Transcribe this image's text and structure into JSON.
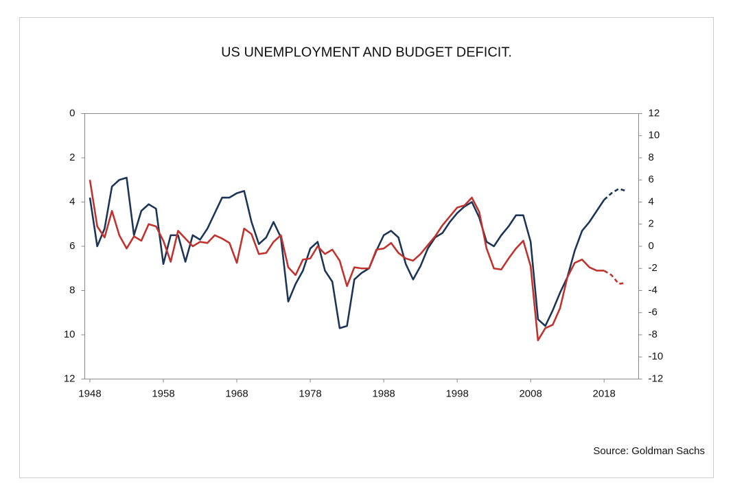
{
  "chart_data": {
    "type": "line",
    "title": "US UNEMPLOYMENT AND BUDGET DEFICIT.",
    "annotation": "Source:  Goldman Sachs",
    "x": [
      1948,
      1949,
      1950,
      1951,
      1952,
      1953,
      1954,
      1955,
      1956,
      1957,
      1958,
      1959,
      1960,
      1961,
      1962,
      1963,
      1964,
      1965,
      1966,
      1967,
      1968,
      1969,
      1970,
      1971,
      1972,
      1973,
      1974,
      1975,
      1976,
      1977,
      1978,
      1979,
      1980,
      1981,
      1982,
      1983,
      1984,
      1985,
      1986,
      1987,
      1988,
      1989,
      1990,
      1991,
      1992,
      1993,
      1994,
      1995,
      1996,
      1997,
      1998,
      1999,
      2000,
      2001,
      2002,
      2003,
      2004,
      2005,
      2006,
      2007,
      2008,
      2009,
      2010,
      2011,
      2012,
      2013,
      2014,
      2015,
      2016,
      2017,
      2018,
      2019,
      2020,
      2021
    ],
    "series": [
      {
        "color": "#1c3557",
        "values": [
          3.8,
          6.0,
          5.2,
          3.3,
          3.0,
          2.9,
          5.5,
          4.4,
          4.1,
          4.3,
          6.8,
          5.5,
          5.5,
          6.7,
          5.5,
          5.7,
          5.2,
          4.5,
          3.8,
          3.8,
          3.6,
          3.5,
          4.9,
          5.9,
          5.6,
          4.9,
          5.6,
          8.5,
          7.7,
          7.1,
          6.1,
          5.8,
          7.1,
          7.6,
          9.7,
          9.6,
          7.5,
          7.2,
          7.0,
          6.2,
          5.5,
          5.3,
          5.6,
          6.8,
          7.5,
          6.9,
          6.1,
          5.6,
          5.4,
          4.9,
          4.5,
          4.2,
          4.0,
          4.7,
          5.8,
          6.0,
          5.5,
          5.1,
          4.6,
          4.6,
          5.8,
          9.3,
          9.6,
          8.9,
          8.1,
          7.4,
          6.2,
          5.3,
          4.9,
          4.4,
          3.9,
          null,
          null,
          null
        ]
      },
      {
        "color": "#1c3557",
        "dashed": true,
        "values": [
          null,
          null,
          null,
          null,
          null,
          null,
          null,
          null,
          null,
          null,
          null,
          null,
          null,
          null,
          null,
          null,
          null,
          null,
          null,
          null,
          null,
          null,
          null,
          null,
          null,
          null,
          null,
          null,
          null,
          null,
          null,
          null,
          null,
          null,
          null,
          null,
          null,
          null,
          null,
          null,
          null,
          null,
          null,
          null,
          null,
          null,
          null,
          null,
          null,
          null,
          null,
          null,
          null,
          null,
          null,
          null,
          null,
          null,
          null,
          null,
          null,
          null,
          null,
          null,
          null,
          null,
          null,
          null,
          null,
          null,
          3.9,
          3.6,
          3.4,
          3.5
        ]
      },
      {
        "color": "#c0322e",
        "axis": "y2",
        "values": [
          6.0,
          1.8,
          0.8,
          3.2,
          1.0,
          -0.2,
          0.9,
          0.5,
          2.0,
          1.8,
          0.5,
          -1.4,
          1.4,
          0.7,
          0.0,
          0.4,
          0.3,
          1.0,
          0.7,
          0.3,
          -1.5,
          1.6,
          1.1,
          -0.7,
          -0.6,
          0.4,
          1.0,
          -1.9,
          -2.6,
          -1.2,
          -1.1,
          0.0,
          -0.7,
          -0.3,
          -1.3,
          -3.6,
          -1.9,
          -2.0,
          -2.0,
          -0.3,
          -0.2,
          0.3,
          -0.6,
          -1.1,
          -1.3,
          -0.7,
          0.1,
          0.9,
          1.9,
          2.7,
          3.5,
          3.7,
          4.4,
          3.1,
          -0.2,
          -2.0,
          -2.1,
          -1.1,
          -0.2,
          0.5,
          -1.8,
          -8.5,
          -7.4,
          -7.1,
          -5.6,
          -2.8,
          -1.5,
          -1.2,
          -1.9,
          -2.2,
          -2.2,
          null,
          null,
          null
        ]
      },
      {
        "color": "#c0322e",
        "axis": "y2",
        "dashed": true,
        "values": [
          null,
          null,
          null,
          null,
          null,
          null,
          null,
          null,
          null,
          null,
          null,
          null,
          null,
          null,
          null,
          null,
          null,
          null,
          null,
          null,
          null,
          null,
          null,
          null,
          null,
          null,
          null,
          null,
          null,
          null,
          null,
          null,
          null,
          null,
          null,
          null,
          null,
          null,
          null,
          null,
          null,
          null,
          null,
          null,
          null,
          null,
          null,
          null,
          null,
          null,
          null,
          null,
          null,
          null,
          null,
          null,
          null,
          null,
          null,
          null,
          null,
          null,
          null,
          null,
          null,
          null,
          null,
          null,
          null,
          null,
          -2.2,
          -2.6,
          -3.4,
          -3.3
        ]
      }
    ],
    "xlim": [
      1947.3,
      2022.7
    ],
    "xticks": [
      1948,
      1958,
      1968,
      1978,
      1988,
      1998,
      2008,
      2018
    ],
    "ylim": [
      0,
      12
    ],
    "y_inverted": true,
    "yticks": [
      0,
      2,
      4,
      6,
      8,
      10,
      12
    ],
    "y2lim": [
      -12,
      12
    ],
    "y2ticks": [
      12,
      10,
      8,
      6,
      4,
      2,
      0,
      -2,
      -4,
      -6,
      -8,
      -10,
      -12
    ],
    "grid": false
  }
}
